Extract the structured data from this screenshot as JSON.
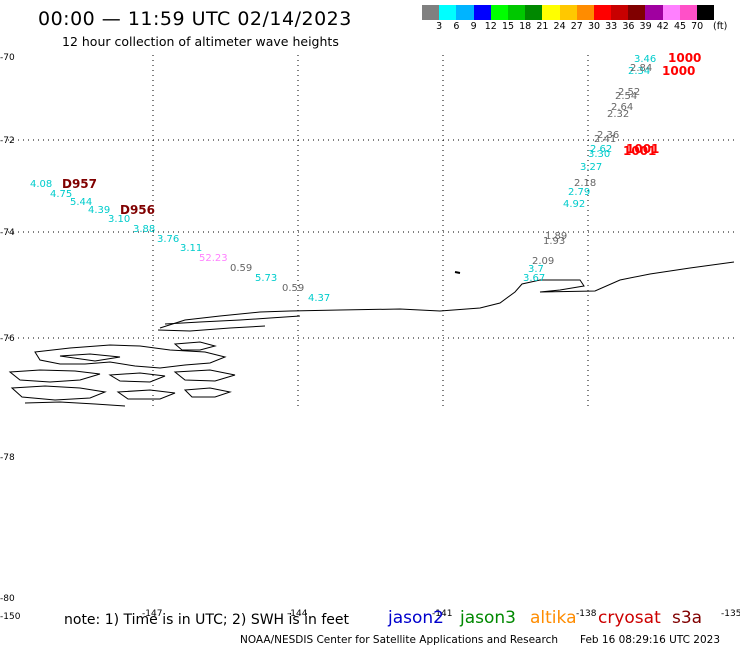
{
  "header": {
    "title": "00:00 — 11:59 UTC 02/14/2023",
    "subtitle": "12 hour collection of altimeter wave heights"
  },
  "legend": {
    "unit": "(ft)",
    "colors": [
      "#808080",
      "#00ffff",
      "#00b4ff",
      "#0000ff",
      "#00ff00",
      "#00c800",
      "#008800",
      "#ffff00",
      "#ffc800",
      "#ff8c00",
      "#ff0000",
      "#c80000",
      "#800000",
      "#a000a0",
      "#ff80ff",
      "#ff50c8",
      "#000000"
    ],
    "labels": [
      "3",
      "6",
      "9",
      "12",
      "15",
      "18",
      "21",
      "24",
      "27",
      "30",
      "33",
      "36",
      "39",
      "42",
      "45",
      "70"
    ]
  },
  "axes": {
    "lat_labels": [
      "-70",
      "-72",
      "-74",
      "-76",
      "-78",
      "-80"
    ],
    "lon_labels": [
      "-150",
      "-147",
      "-144",
      "-141",
      "-138",
      "-135"
    ]
  },
  "footer": {
    "note": "note: 1) Time is in UTC; 2) SWH is in feet",
    "credit": "NOAA/NESDIS Center for Satellite Applications and Research",
    "timestamp": "Feb 16 08:29:16 UTC 2023",
    "satellites": [
      {
        "name": "jason2",
        "color": "#0000cc"
      },
      {
        "name": "jason3",
        "color": "#008800"
      },
      {
        "name": "altika",
        "color": "#ff8c00"
      },
      {
        "name": "cryosat",
        "color": "#cc0000"
      },
      {
        "name": "s3a",
        "color": "#800000"
      }
    ]
  },
  "observations": [
    {
      "value": "4.08",
      "color": "#00cccc"
    },
    {
      "value": "4.75",
      "color": "#00cccc"
    },
    {
      "value": "5.44",
      "color": "#00cccc"
    },
    {
      "value": "4.39",
      "color": "#00cccc"
    },
    {
      "value": "3.10",
      "color": "#00cccc"
    },
    {
      "value": "3.88",
      "color": "#00cccc"
    },
    {
      "value": "3.76",
      "color": "#00cccc"
    },
    {
      "value": "3.11",
      "color": "#00cccc"
    },
    {
      "value": "52.23",
      "color": "#ff80ff"
    },
    {
      "value": "0.59",
      "color": "#666666"
    },
    {
      "value": "5.73",
      "color": "#00cccc"
    },
    {
      "value": "0.59",
      "color": "#666666"
    },
    {
      "value": "4.37",
      "color": "#00cccc"
    },
    {
      "value": "1.89",
      "color": "#666666"
    },
    {
      "value": "1.93",
      "color": "#666666"
    },
    {
      "value": "2.09",
      "color": "#666666"
    },
    {
      "value": "3.7",
      "color": "#00cccc"
    },
    {
      "value": "3.67",
      "color": "#00cccc"
    },
    {
      "value": "4.92",
      "color": "#00cccc"
    },
    {
      "value": "2.79",
      "color": "#00cccc"
    },
    {
      "value": "2.18",
      "color": "#666666"
    },
    {
      "value": "3.27",
      "color": "#00cccc"
    },
    {
      "value": "3.30",
      "color": "#00cccc"
    },
    {
      "value": "2.62",
      "color": "#00cccc"
    },
    {
      "value": "2.41",
      "color": "#666666"
    },
    {
      "value": "2.36",
      "color": "#666666"
    },
    {
      "value": "2.32",
      "color": "#666666"
    },
    {
      "value": "2.64",
      "color": "#666666"
    },
    {
      "value": "2.54",
      "color": "#666666"
    },
    {
      "value": "2.52",
      "color": "#666666"
    },
    {
      "value": "2.34",
      "color": "#00cccc"
    },
    {
      "value": "2.84",
      "color": "#666666"
    },
    {
      "value": "3.46",
      "color": "#00cccc"
    }
  ],
  "pressure_labels": [
    {
      "value": "D957",
      "color": "#800000"
    },
    {
      "value": "D956",
      "color": "#800000"
    },
    {
      "value": "1001",
      "color": "#ff0000"
    },
    {
      "value": "1001",
      "color": "#ff0000"
    },
    {
      "value": "1000",
      "color": "#ff0000"
    },
    {
      "value": "1000",
      "color": "#ff0000"
    }
  ]
}
